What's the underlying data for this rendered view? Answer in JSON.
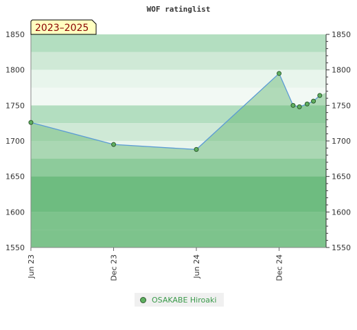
{
  "chart_data": {
    "type": "area",
    "title": "WOF ratinglist",
    "period_label": "2023–2025",
    "ylim": [
      1550,
      1850
    ],
    "y_ticks": [
      1550,
      1600,
      1650,
      1700,
      1750,
      1800,
      1850
    ],
    "x_ticks": [
      {
        "label": "Jun 23",
        "date": "2023-06-01"
      },
      {
        "label": "Dec 23",
        "date": "2023-12-01"
      },
      {
        "label": "Jun 24",
        "date": "2024-06-01"
      },
      {
        "label": "Dec 24",
        "date": "2024-12-01"
      }
    ],
    "xlim": [
      "2023-06-01",
      "2025-03-15"
    ],
    "series": [
      {
        "name": "OSAKABE Hiroaki",
        "x": [
          "2023-06-01",
          "2023-12-01",
          "2024-06-01",
          "2024-12-01",
          "2025-01-01",
          "2025-01-15",
          "2025-02-01",
          "2025-02-15",
          "2025-03-01"
        ],
        "y": [
          1726,
          1695,
          1688,
          1795,
          1750,
          1748,
          1752,
          1756,
          1764
        ]
      }
    ],
    "legend_position": "bottom-center",
    "grid": false
  },
  "colors": {
    "band_dark": "#7bc38f",
    "band_mid": "#95d0a5",
    "band_light": "#b3dec0",
    "band_lighter": "#cfe9d6",
    "band_lightest": "#e8f5ec",
    "area_fill": "#5fb36f",
    "line": "#5b9bd5",
    "marker_fill": "#5fb060",
    "marker_stroke": "#2e5a2e",
    "period_bg": "#ffffc0"
  },
  "legend": {
    "label": "OSAKABE Hiroaki"
  }
}
